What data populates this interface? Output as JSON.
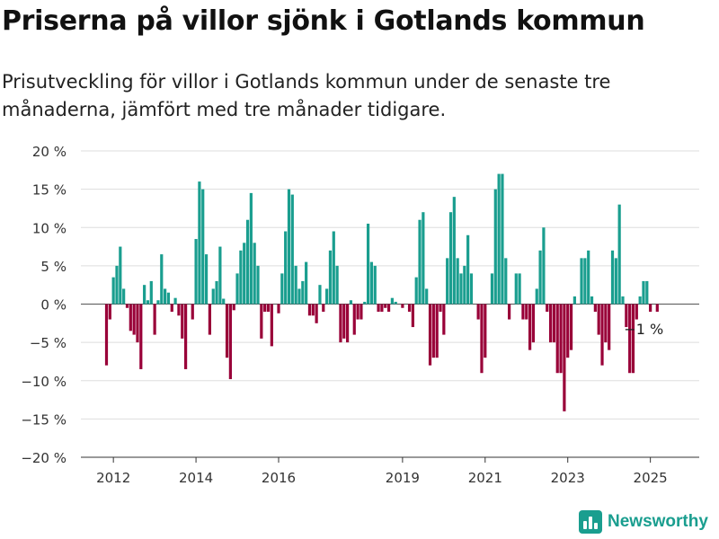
{
  "title": "Priserna på villor sjönk i Gotlands kommun",
  "subtitle": "Prisutveckling för villor i Gotlands kommun under de senaste tre månaderna, jämfört med tre månader tidigare.",
  "brand": "Newsworthy",
  "colors": {
    "positive": "#1a9e8f",
    "negative": "#990038",
    "grid": "#dddddd",
    "axis": "#333333"
  },
  "chart_data": {
    "type": "bar",
    "y_unit": "%",
    "ylim": [
      -20,
      20
    ],
    "yticks": [
      20,
      15,
      10,
      5,
      0,
      -5,
      -10,
      -15,
      -20
    ],
    "ytick_labels": [
      "20 %",
      "15 %",
      "10 %",
      "5 %",
      "0 %",
      "−5 %",
      "−10 %",
      "−15 %",
      "−20 %"
    ],
    "xtick_labels": [
      "2012",
      "2014",
      "2016",
      "2019",
      "2021",
      "2023",
      "2025"
    ],
    "xtick_index": [
      2,
      26,
      50,
      86,
      110,
      134,
      158
    ],
    "grid": true,
    "legend": "none",
    "annotation": {
      "text": "−1 %",
      "index": 160
    },
    "values": [
      -8,
      -2,
      3.5,
      5,
      7.5,
      2,
      -0.5,
      -3.5,
      -4,
      -5,
      -8.5,
      2.5,
      0.5,
      3,
      -4,
      0.5,
      6.5,
      2,
      1.5,
      -1,
      0.8,
      -1.5,
      -4.5,
      -8.5,
      0,
      -2,
      8.5,
      16,
      15,
      6.5,
      -4,
      2,
      3,
      7.5,
      0.7,
      -7,
      -9.8,
      -0.8,
      4,
      7,
      8,
      11,
      14.5,
      8,
      5,
      -4.5,
      -1,
      -1,
      -5.5,
      0,
      -1.2,
      4,
      9.5,
      15,
      14.3,
      5,
      2,
      3,
      5.5,
      -1.5,
      -1.5,
      -2.5,
      2.5,
      -1,
      2,
      7,
      9.5,
      5,
      -5,
      -4.5,
      -5,
      0.5,
      -4,
      -2,
      -2,
      0.3,
      10.5,
      5.5,
      5,
      -1,
      -1,
      -0.5,
      -1,
      0.8,
      0.3,
      0,
      -0.5,
      0,
      -1,
      -3,
      3.5,
      11,
      12,
      2,
      -8,
      -7,
      -7,
      -1,
      -4,
      6,
      12,
      14,
      6,
      4,
      5,
      9,
      4,
      0,
      -2,
      -9,
      -7,
      0,
      4,
      15,
      17,
      17,
      6,
      -2,
      0,
      4,
      4,
      -2,
      -2,
      -6,
      -5,
      2,
      7,
      10,
      -1,
      -5,
      -5,
      -9,
      -9,
      -14,
      -7,
      -6,
      1,
      0,
      6,
      6,
      7,
      1,
      -1,
      -4,
      -8,
      -5,
      -6,
      7,
      6,
      13,
      1,
      -3,
      -9,
      -9,
      -2,
      1,
      3,
      3,
      -1,
      0,
      -1
    ]
  }
}
